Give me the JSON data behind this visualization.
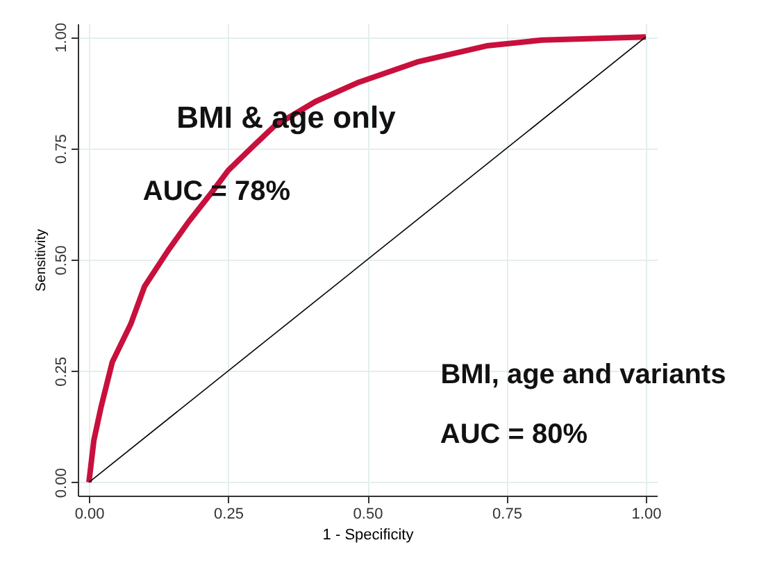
{
  "chart_data": {
    "type": "line",
    "xlabel": "1 - Specificity",
    "ylabel": "Sensitivity",
    "xlim": [
      -0.02,
      1.02
    ],
    "ylim": [
      -0.03,
      1.03
    ],
    "xticks": [
      {
        "value": 0,
        "label": "0.00"
      },
      {
        "value": 0.25,
        "label": "0.25"
      },
      {
        "value": 0.5,
        "label": "0.50"
      },
      {
        "value": 0.75,
        "label": "0.75"
      },
      {
        "value": 1,
        "label": "1.00"
      }
    ],
    "yticks": [
      {
        "value": 0,
        "label": "0.00"
      },
      {
        "value": 0.25,
        "label": "0.25"
      },
      {
        "value": 0.5,
        "label": "0.50"
      },
      {
        "value": 0.75,
        "label": "0.75"
      },
      {
        "value": 1,
        "label": "1.00"
      }
    ],
    "grid": true,
    "marker": "none",
    "series": [
      {
        "color": "#c8103c",
        "x": [
          0,
          0.009,
          0.022,
          0.042,
          0.075,
          0.1,
          0.142,
          0.179,
          0.22,
          0.25,
          0.291,
          0.333,
          0.407,
          0.482,
          0.59,
          0.714,
          0.813,
          1
        ],
        "values": [
          0,
          0.095,
          0.17,
          0.27,
          0.355,
          0.44,
          0.52,
          0.585,
          0.65,
          0.7,
          0.75,
          0.8,
          0.855,
          0.897,
          0.944,
          0.98,
          0.993,
          1
        ]
      },
      {
        "color": "#000000",
        "x": [
          0,
          1
        ],
        "values": [
          0,
          1
        ]
      }
    ],
    "annotations": [
      "BMI & age only",
      "AUC = 78%",
      "BMI, age and variants",
      "AUC = 80%"
    ]
  }
}
